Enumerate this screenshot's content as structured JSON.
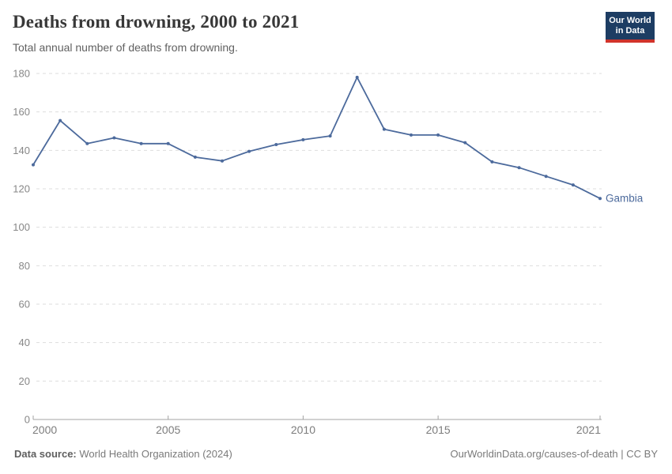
{
  "header": {
    "title": "Deaths from drowning, 2000 to 2021",
    "subtitle": "Total annual number of deaths from drowning.",
    "logo": {
      "line1": "Our World",
      "line2": "in Data",
      "bg_color": "#1d3d63",
      "bar_color": "#d1342b"
    }
  },
  "chart_data": {
    "type": "line",
    "title": "Deaths from drowning, 2000 to 2021",
    "xlabel": "",
    "ylabel": "",
    "x": [
      2000,
      2001,
      2002,
      2003,
      2004,
      2005,
      2006,
      2007,
      2008,
      2009,
      2010,
      2011,
      2012,
      2013,
      2014,
      2015,
      2016,
      2017,
      2018,
      2019,
      2020,
      2021
    ],
    "series": [
      {
        "name": "Gambia",
        "color": "#4C6A9C",
        "values": [
          132.5,
          155.5,
          143.5,
          146.5,
          143.5,
          143.5,
          136.5,
          134.5,
          139.5,
          143,
          145.5,
          147.5,
          178,
          151,
          148,
          148,
          144,
          134,
          131,
          126.5,
          122,
          115
        ]
      }
    ],
    "end_label": "Gambia",
    "xlim": [
      2000,
      2021
    ],
    "ylim": [
      0,
      180
    ],
    "x_ticks": [
      2000,
      2005,
      2010,
      2015,
      2021
    ],
    "y_ticks": [
      0,
      20,
      40,
      60,
      80,
      100,
      120,
      140,
      160,
      180
    ],
    "grid": "horizontal-dashed",
    "legend_position": "end-of-line"
  },
  "footer": {
    "source_label": "Data source:",
    "source_value": "World Health Organization (2024)",
    "rights": "OurWorldinData.org/causes-of-death | CC BY"
  },
  "colors": {
    "line": "#4C6A9C",
    "grid": "#dddddd",
    "axis": "#a3a3a3",
    "y_tick_text": "#878787",
    "x_tick_text": "#7d7d7d",
    "end_label_text": "#4C6A9C"
  }
}
